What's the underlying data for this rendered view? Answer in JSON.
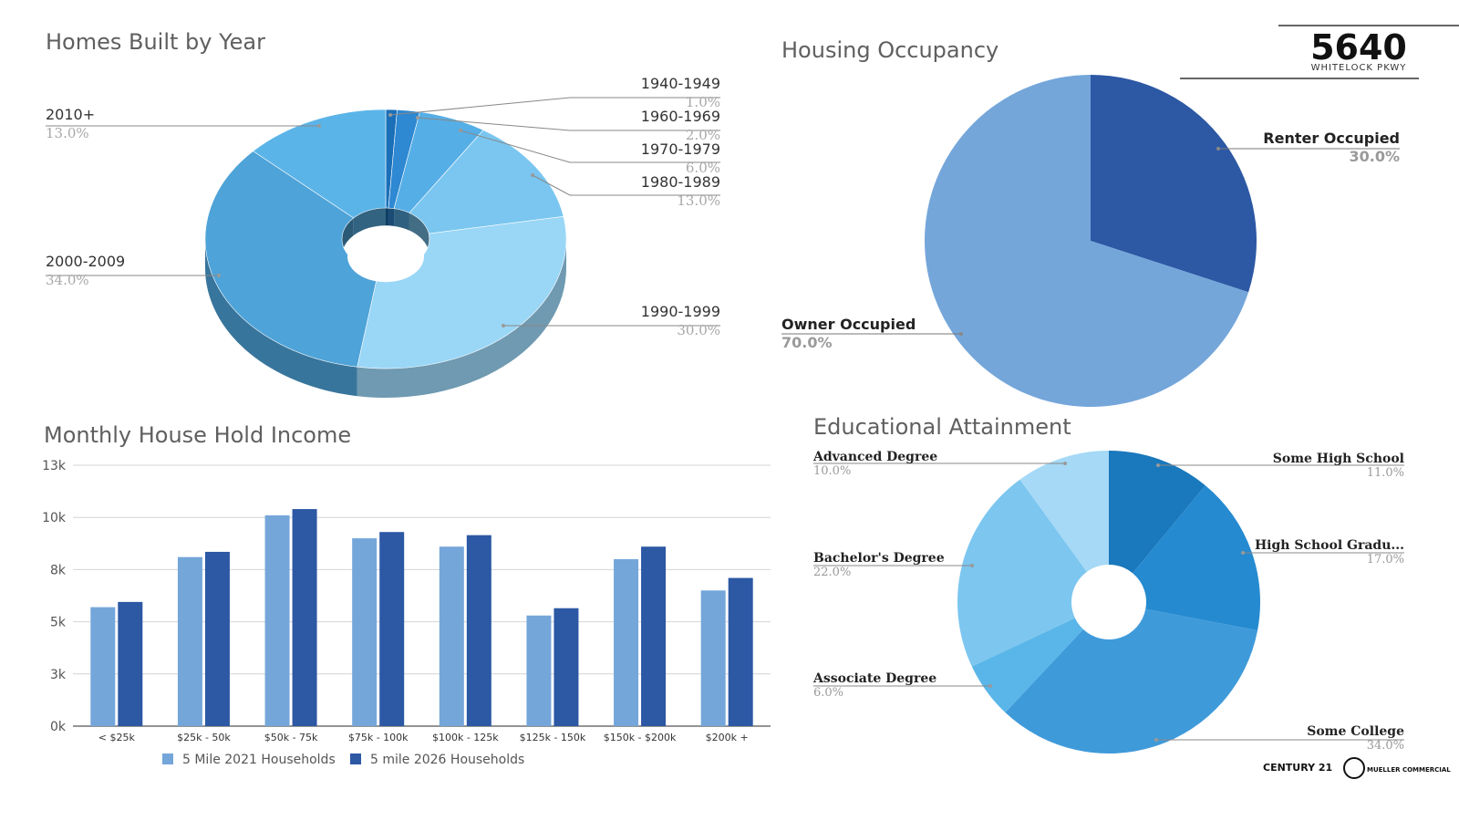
{
  "branding": {
    "number": "5640",
    "street": "WHITELOCK PKWY",
    "footer_logo_1": "CENTURY 21",
    "footer_logo_2": "MUELLER COMMERCIAL"
  },
  "chart_data": [
    {
      "id": "homes_built",
      "type": "pie",
      "title": "Homes Built by Year",
      "donut": true,
      "slices": [
        {
          "label": "1940-1949",
          "value": 1.0,
          "value_label": "1.0%",
          "color": "#1a6fb8"
        },
        {
          "label": "1960-1969",
          "value": 2.0,
          "value_label": "2.0%",
          "color": "#2e88d2"
        },
        {
          "label": "1970-1979",
          "value": 6.0,
          "value_label": "6.0%",
          "color": "#56aee6"
        },
        {
          "label": "1980-1989",
          "value": 13.0,
          "value_label": "13.0%",
          "color": "#7ac6f0"
        },
        {
          "label": "1990-1999",
          "value": 30.0,
          "value_label": "30.0%",
          "color": "#9ad6f6"
        },
        {
          "label": "2000-2009",
          "value": 34.0,
          "value_label": "34.0%",
          "color": "#4ea3d8"
        },
        {
          "label": "2010+",
          "value": 13.0,
          "value_label": "13.0%",
          "color": "#5bb4e8"
        }
      ]
    },
    {
      "id": "housing_occupancy",
      "type": "pie",
      "title": "Housing Occupancy",
      "slices": [
        {
          "label": "Renter Occupied",
          "value": 30.0,
          "value_label": "30.0%",
          "color": "#2c58a4"
        },
        {
          "label": "Owner Occupied",
          "value": 70.0,
          "value_label": "70.0%",
          "color": "#74a6da"
        }
      ]
    },
    {
      "id": "monthly_income",
      "type": "bar",
      "title": "Monthly House Hold Income",
      "categories": [
        "< $25k",
        "$25k - 50k",
        "$50k - 75k",
        "$75k - 100k",
        "$100k - 125k",
        "$125k - 150k",
        "$150k - $200k",
        "$200k +"
      ],
      "series": [
        {
          "name": "5 Mile 2021 Households",
          "color": "#74a6da",
          "values": [
            5700,
            8100,
            10100,
            9000,
            8600,
            5300,
            8000,
            6500
          ]
        },
        {
          "name": "5 mile 2026 Households",
          "color": "#2c58a4",
          "values": [
            5950,
            8350,
            10400,
            9300,
            9150,
            5650,
            8600,
            7100
          ]
        }
      ],
      "yticks": [
        "0k",
        "3k",
        "5k",
        "8k",
        "10k",
        "13k"
      ],
      "ylim": [
        0,
        12500
      ],
      "grid": true,
      "legend": "bottom"
    },
    {
      "id": "education",
      "type": "pie",
      "title": "Educational Attainment",
      "donut": true,
      "slices": [
        {
          "label": "Some High School",
          "value": 11.0,
          "value_label": "11.0%",
          "color": "#1a78bc"
        },
        {
          "label": "High School Gradu...",
          "value": 17.0,
          "value_label": "17.0%",
          "color": "#258ad0"
        },
        {
          "label": "Some College",
          "value": 34.0,
          "value_label": "34.0%",
          "color": "#3f9ada"
        },
        {
          "label": "Associate Degree",
          "value": 6.0,
          "value_label": "6.0%",
          "color": "#5ab6e8"
        },
        {
          "label": "Bachelor's Degree",
          "value": 22.0,
          "value_label": "22.0%",
          "color": "#7cc6f0"
        },
        {
          "label": "Advanced Degree",
          "value": 10.0,
          "value_label": "10.0%",
          "color": "#a5d9f6"
        }
      ]
    }
  ]
}
